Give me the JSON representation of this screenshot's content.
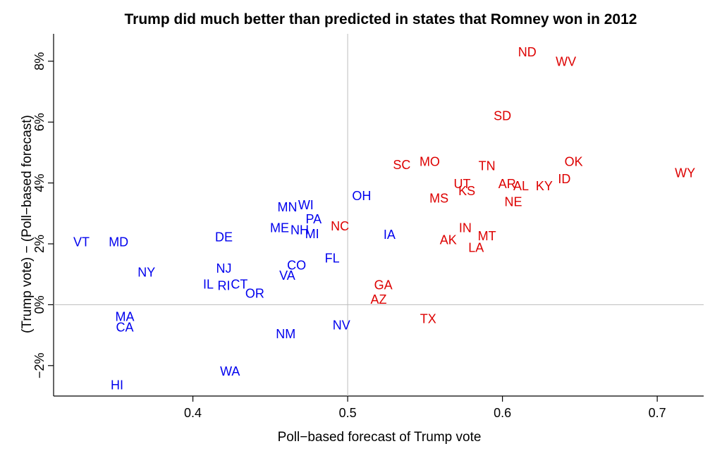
{
  "chart_data": {
    "type": "scatter",
    "title": "Trump did much better than predicted in states that Romney won in 2012",
    "xlabel": "Poll−based forecast of Trump vote",
    "ylabel": "(Trump vote) − (Poll−based forecast)",
    "xlim": [
      0.31,
      0.73
    ],
    "ylim": [
      -3.0,
      8.9
    ],
    "x_ticks": [
      0.4,
      0.5,
      0.6,
      0.7
    ],
    "x_tick_labels": [
      "0.4",
      "0.5",
      "0.6",
      "0.7"
    ],
    "y_ticks": [
      -2,
      0,
      2,
      4,
      6,
      8
    ],
    "y_tick_labels": [
      "−2%",
      "0%",
      "2%",
      "4%",
      "6%",
      "8%"
    ],
    "reference_lines": {
      "x": 0.5,
      "y": 0
    },
    "grid": false,
    "colors": {
      "romney_2012": "#dd0000",
      "obama_2012": "#0000ee"
    },
    "series": [
      {
        "group": "romney_2012",
        "points": [
          {
            "label": "ND",
            "x": 0.616,
            "y": 8.3
          },
          {
            "label": "WV",
            "x": 0.641,
            "y": 7.99
          },
          {
            "label": "SD",
            "x": 0.6,
            "y": 6.2
          },
          {
            "label": "SC",
            "x": 0.535,
            "y": 4.59
          },
          {
            "label": "MO",
            "x": 0.553,
            "y": 4.7
          },
          {
            "label": "TN",
            "x": 0.59,
            "y": 4.56
          },
          {
            "label": "OK",
            "x": 0.646,
            "y": 4.7
          },
          {
            "label": "WY",
            "x": 0.718,
            "y": 4.33
          },
          {
            "label": "ID",
            "x": 0.64,
            "y": 4.13
          },
          {
            "label": "UT",
            "x": 0.574,
            "y": 3.97
          },
          {
            "label": "AR",
            "x": 0.603,
            "y": 3.97
          },
          {
            "label": "AL",
            "x": 0.612,
            "y": 3.9
          },
          {
            "label": "KY",
            "x": 0.627,
            "y": 3.9
          },
          {
            "label": "KS",
            "x": 0.577,
            "y": 3.74
          },
          {
            "label": "MS",
            "x": 0.559,
            "y": 3.49
          },
          {
            "label": "NE",
            "x": 0.607,
            "y": 3.38
          },
          {
            "label": "NC",
            "x": 0.495,
            "y": 2.58
          },
          {
            "label": "IN",
            "x": 0.576,
            "y": 2.52
          },
          {
            "label": "MT",
            "x": 0.59,
            "y": 2.26
          },
          {
            "label": "AK",
            "x": 0.565,
            "y": 2.13
          },
          {
            "label": "LA",
            "x": 0.583,
            "y": 1.87
          },
          {
            "label": "GA",
            "x": 0.523,
            "y": 0.65
          },
          {
            "label": "AZ",
            "x": 0.52,
            "y": 0.17
          },
          {
            "label": "TX",
            "x": 0.552,
            "y": -0.46
          }
        ]
      },
      {
        "group": "obama_2012",
        "points": [
          {
            "label": "OH",
            "x": 0.509,
            "y": 3.58
          },
          {
            "label": "MN",
            "x": 0.461,
            "y": 3.2
          },
          {
            "label": "WI",
            "x": 0.473,
            "y": 3.27
          },
          {
            "label": "PA",
            "x": 0.478,
            "y": 2.81
          },
          {
            "label": "ME",
            "x": 0.456,
            "y": 2.52
          },
          {
            "label": "NH",
            "x": 0.469,
            "y": 2.45
          },
          {
            "label": "MI",
            "x": 0.477,
            "y": 2.33
          },
          {
            "label": "IA",
            "x": 0.527,
            "y": 2.3
          },
          {
            "label": "DE",
            "x": 0.42,
            "y": 2.22
          },
          {
            "label": "VT",
            "x": 0.328,
            "y": 2.06
          },
          {
            "label": "MD",
            "x": 0.352,
            "y": 2.06
          },
          {
            "label": "FL",
            "x": 0.49,
            "y": 1.53
          },
          {
            "label": "CO",
            "x": 0.467,
            "y": 1.3
          },
          {
            "label": "NJ",
            "x": 0.42,
            "y": 1.19
          },
          {
            "label": "NY",
            "x": 0.37,
            "y": 1.06
          },
          {
            "label": "VA",
            "x": 0.461,
            "y": 0.96
          },
          {
            "label": "IL",
            "x": 0.41,
            "y": 0.67
          },
          {
            "label": "CT",
            "x": 0.43,
            "y": 0.67
          },
          {
            "label": "RI",
            "x": 0.42,
            "y": 0.62
          },
          {
            "label": "OR",
            "x": 0.44,
            "y": 0.37
          },
          {
            "label": "MA",
            "x": 0.356,
            "y": -0.39
          },
          {
            "label": "CA",
            "x": 0.356,
            "y": -0.74
          },
          {
            "label": "NV",
            "x": 0.496,
            "y": -0.67
          },
          {
            "label": "NM",
            "x": 0.46,
            "y": -0.96
          },
          {
            "label": "WA",
            "x": 0.424,
            "y": -2.19
          },
          {
            "label": "HI",
            "x": 0.351,
            "y": -2.64
          }
        ]
      }
    ]
  }
}
